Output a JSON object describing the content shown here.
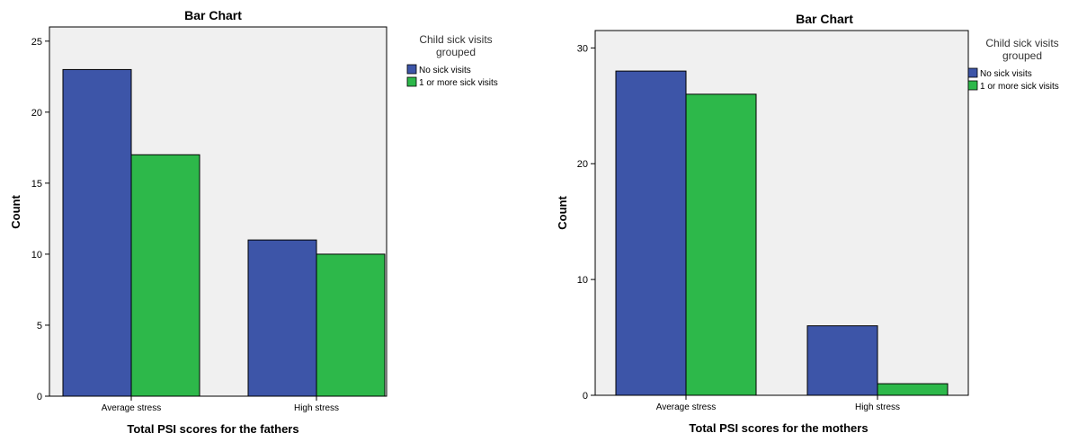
{
  "chart_data": [
    {
      "type": "bar",
      "title": "Bar Chart",
      "xlabel": "Total PSI scores for the fathers",
      "ylabel": "Count",
      "categories": [
        "Average stress",
        "High stress"
      ],
      "series": [
        {
          "name": "No sick visits",
          "values": [
            23,
            11
          ]
        },
        {
          "name": "1 or more sick visits",
          "values": [
            17,
            10
          ]
        }
      ],
      "ylim": [
        0,
        26
      ],
      "yticks": [
        0,
        5,
        10,
        15,
        20,
        25
      ],
      "legend": {
        "title_line1": "Child sick visits",
        "title_line2": "grouped",
        "placement": "right"
      },
      "colors": [
        "#3d55a8",
        "#2db84a"
      ],
      "plot_background": "#f0f0f0",
      "grid": false
    },
    {
      "type": "bar",
      "title": "Bar Chart",
      "xlabel": "Total PSI scores for the mothers",
      "ylabel": "Count",
      "categories": [
        "Average stress",
        "High stress"
      ],
      "series": [
        {
          "name": "No sick visits",
          "values": [
            28,
            6
          ]
        },
        {
          "name": "1 or more sick visits",
          "values": [
            26,
            1
          ]
        }
      ],
      "ylim": [
        0,
        31.5
      ],
      "yticks": [
        0,
        10,
        20,
        30
      ],
      "legend": {
        "title_line1": "Child sick visits",
        "title_line2": "grouped",
        "placement": "right"
      },
      "colors": [
        "#3d55a8",
        "#2db84a"
      ],
      "plot_background": "#f0f0f0",
      "grid": false
    }
  ]
}
